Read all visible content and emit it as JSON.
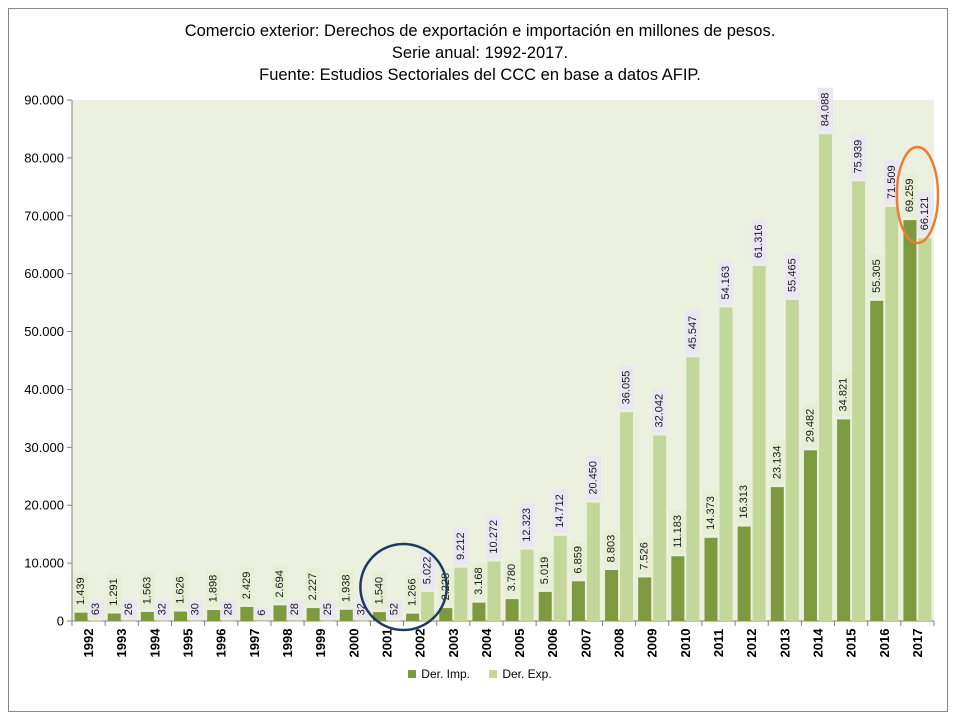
{
  "chart_data": {
    "type": "bar",
    "title_lines": [
      "Comercio exterior: Derechos de exportación e importación en millones de pesos.",
      "Serie anual: 1992-2017.",
      "Fuente: Estudios Sectoriales del CCC en base a datos AFIP."
    ],
    "xlabel": "",
    "ylabel": "",
    "ylim": [
      0,
      90000
    ],
    "yticks": [
      0,
      10000,
      20000,
      30000,
      40000,
      50000,
      60000,
      70000,
      80000,
      90000
    ],
    "ytick_labels": [
      "0",
      "10.000",
      "20.000",
      "30.000",
      "40.000",
      "50.000",
      "60.000",
      "70.000",
      "80.000",
      "90.000"
    ],
    "categories": [
      "1992",
      "1993",
      "1994",
      "1995",
      "1996",
      "1997",
      "1998",
      "1999",
      "2000",
      "2001",
      "2002",
      "2003",
      "2004",
      "2005",
      "2006",
      "2007",
      "2008",
      "2009",
      "2010",
      "2011",
      "2012",
      "2013",
      "2014",
      "2015",
      "2016",
      "2017"
    ],
    "series": [
      {
        "name": "Der. Imp.",
        "color": "#7d9a3f",
        "values": [
          1439,
          1291,
          1563,
          1626,
          1898,
          2429,
          2694,
          2227,
          1938,
          1540,
          1266,
          2228,
          3168,
          3780,
          5019,
          6859,
          8803,
          7526,
          11183,
          14373,
          16313,
          23134,
          29482,
          34821,
          55305,
          69259
        ],
        "labels": [
          "1.439",
          "1.291",
          "1.563",
          "1.626",
          "1.898",
          "2.429",
          "2.694",
          "2.227",
          "1.938",
          "1.540",
          "1.266",
          "2.228",
          "3.168",
          "3.780",
          "5.019",
          "6.859",
          "8.803",
          "7.526",
          "11.183",
          "14.373",
          "16.313",
          "23.134",
          "29.482",
          "34.821",
          "55.305",
          "69.259"
        ]
      },
      {
        "name": "Der. Exp.",
        "color": "#c3d79b",
        "values": [
          63,
          26,
          32,
          30,
          28,
          6,
          28,
          25,
          32,
          52,
          5022,
          9212,
          10272,
          12323,
          14712,
          20450,
          36055,
          32042,
          45547,
          54163,
          61316,
          55465,
          84088,
          75939,
          71509,
          66121
        ],
        "labels": [
          "63",
          "26",
          "32",
          "30",
          "28",
          "6",
          "28",
          "25",
          "32",
          "52",
          "5.022",
          "9.212",
          "10.272",
          "12.323",
          "14.712",
          "20.450",
          "36.055",
          "32.042",
          "45.547",
          "54.163",
          "61.316",
          "55.465",
          "84.088",
          "75.939",
          "71.509",
          "66.121"
        ]
      }
    ],
    "grid": false,
    "legend_position": "bottom",
    "plot_background": "#ebf1de",
    "annotations": [
      {
        "shape": "ellipse",
        "around_categories": [
          "2001",
          "2002"
        ],
        "color": "#1f3864"
      },
      {
        "shape": "ellipse",
        "around_categories": [
          "2017"
        ],
        "color": "#ed7d31"
      }
    ]
  }
}
